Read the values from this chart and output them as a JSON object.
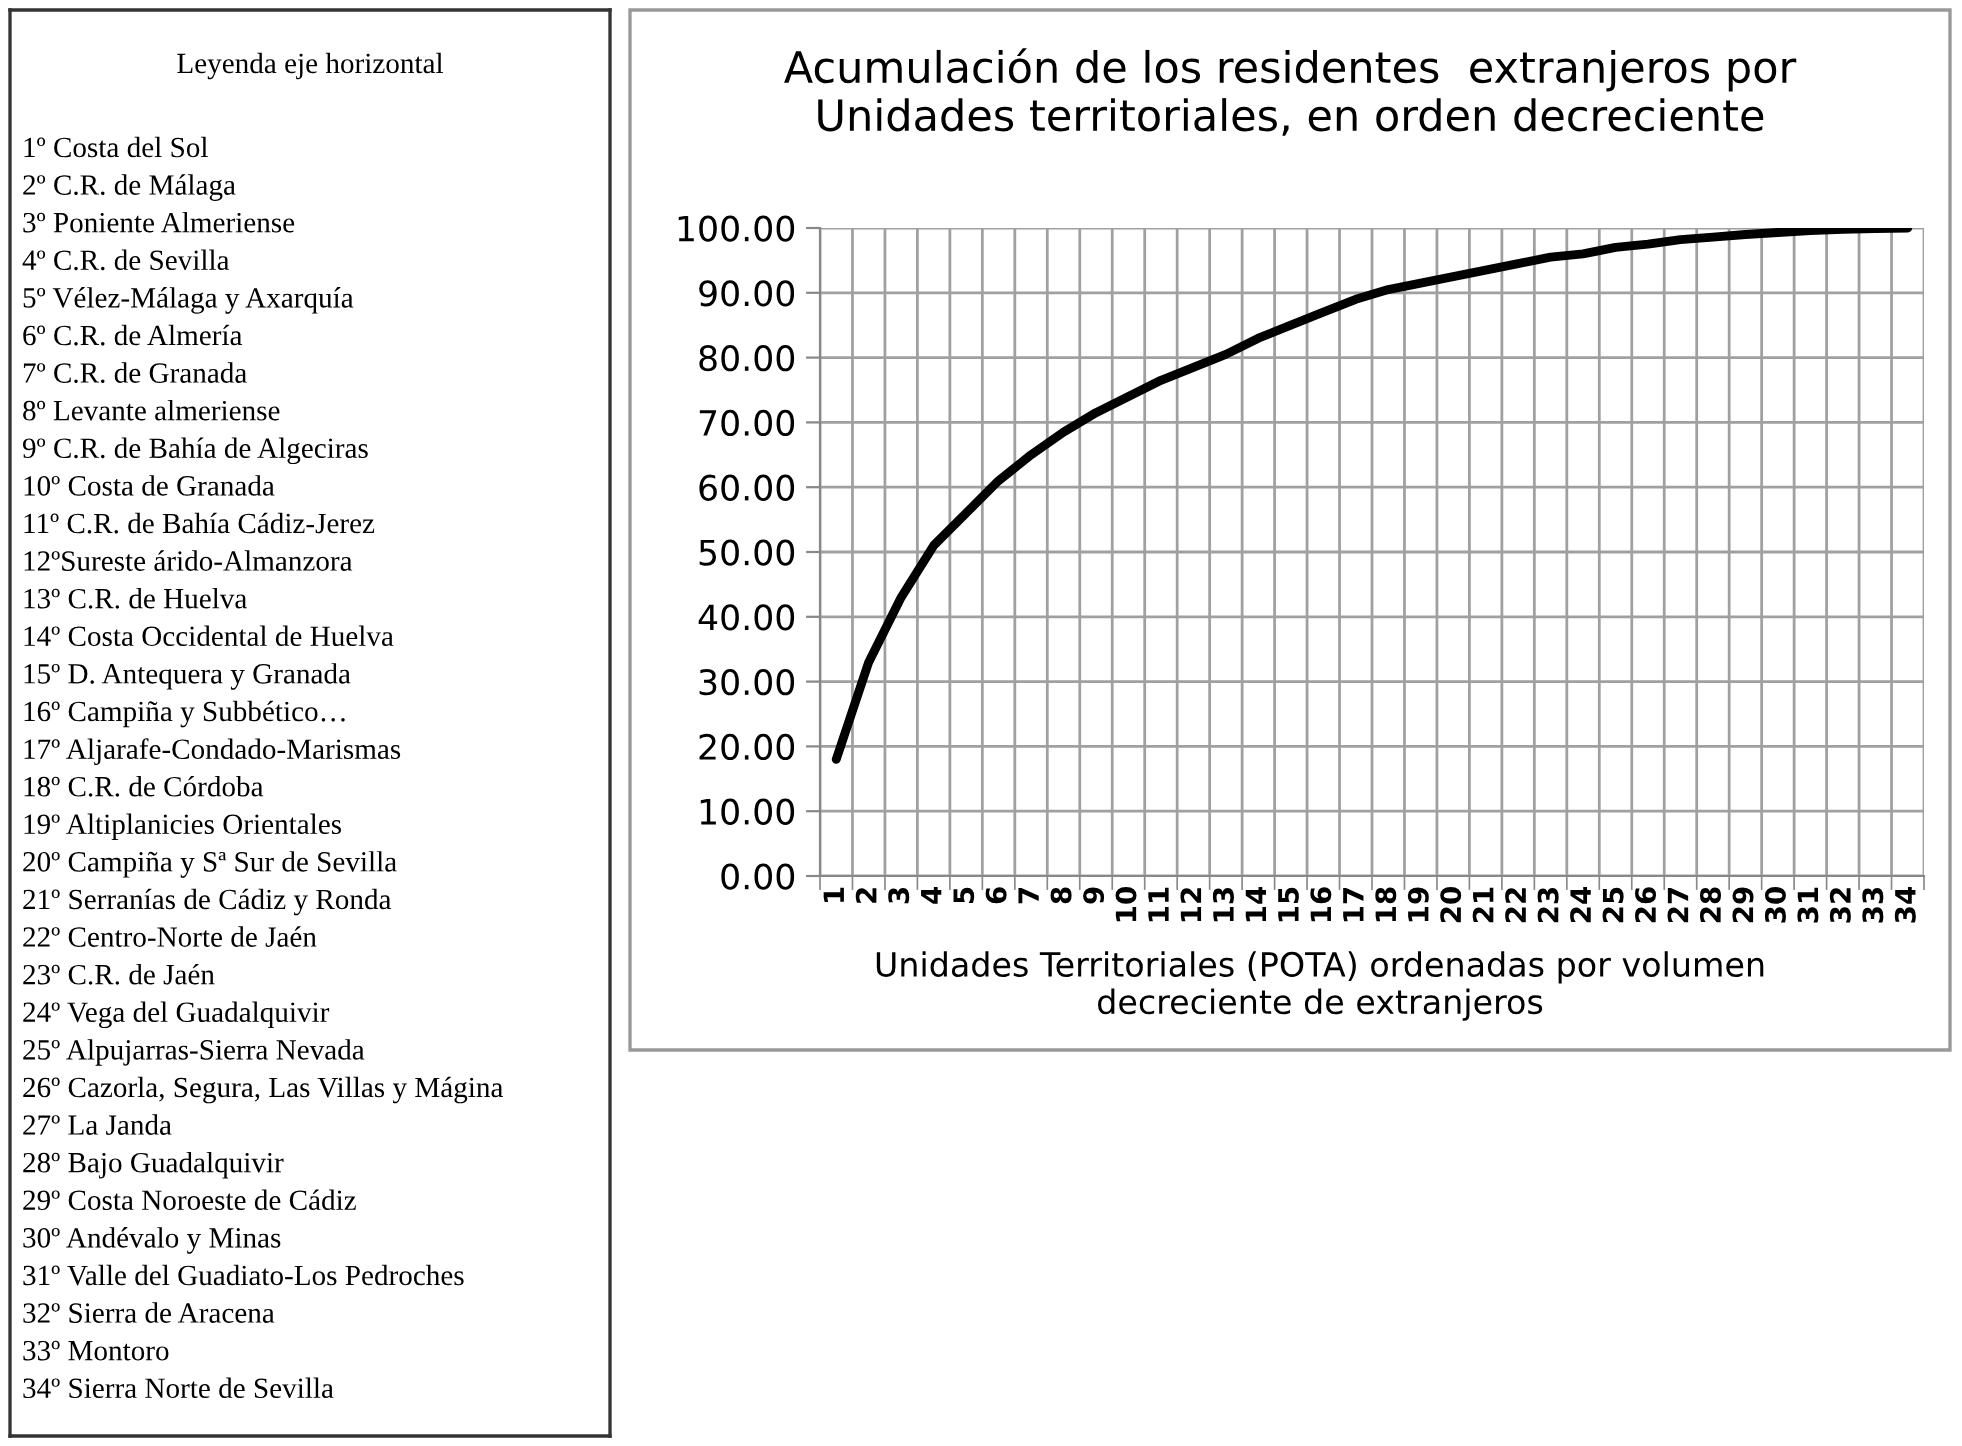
{
  "chart_data": [
    {
      "type": "other",
      "title": "Leyenda eje horizontal",
      "annotations": [
        "1º Costa del Sol",
        "2º C.R. de Málaga",
        "3º Poniente Almeriense",
        "4º C.R. de Sevilla",
        "5º Vélez-Málaga y Axarquía",
        "6º C.R. de Almería",
        "7º C.R. de Granada",
        "8º Levante almeriense",
        "9º C.R. de Bahía de Algeciras",
        "10º Costa de Granada",
        "11º C.R. de Bahía Cádiz-Jerez",
        "12ºSureste árido-Almanzora",
        "13º C.R. de Huelva",
        "14º Costa Occidental de Huelva",
        "15º D. Antequera y Granada",
        "16º Campiña y Subbético…",
        "17º Aljarafe-Condado-Marismas",
        "18º C.R. de Córdoba",
        "19º Altiplanicies Orientales",
        "20º Campiña y Sª Sur de Sevilla",
        "21º Serranías de Cádiz y Ronda",
        "22º Centro-Norte de Jaén",
        "23º C.R. de Jaén",
        "24º Vega del Guadalquivir",
        "25º Alpujarras-Sierra Nevada",
        "26º Cazorla, Segura, Las Villas y Mágina",
        "27º La Janda",
        "28º Bajo Guadalquivir",
        "29º Costa Noroeste de Cádiz",
        "30º Andévalo y Minas",
        "31º Valle del Guadiato-Los Pedroches",
        "32º Sierra de Aracena",
        "33º Montoro",
        "34º Sierra Norte de Sevilla"
      ]
    },
    {
      "type": "line",
      "title": "Acumulación de los residentes  extranjeros por Unidades territoriales, en orden decreciente",
      "xlabel": "Unidades Territoriales (POTA) ordenadas por volumen decreciente de extranjeros",
      "categories": [
        "1",
        "2",
        "3",
        "4",
        "5",
        "6",
        "7",
        "8",
        "9",
        "10",
        "11",
        "12",
        "13",
        "14",
        "15",
        "16",
        "17",
        "18",
        "19",
        "20",
        "21",
        "22",
        "23",
        "24",
        "25",
        "26",
        "27",
        "28",
        "29",
        "30",
        "31",
        "32",
        "33",
        "34"
      ],
      "series": [
        {
          "color": "#000000",
          "values": [
            18,
            33,
            43,
            51,
            56,
            61,
            65,
            68.5,
            71.5,
            74,
            76.5,
            78.5,
            80.5,
            83,
            85,
            87,
            89,
            90.5,
            91.5,
            92.5,
            93.5,
            94.5,
            95.5,
            96,
            97,
            97.5,
            98.2,
            98.6,
            99,
            99.3,
            99.6,
            99.8,
            99.9,
            100
          ]
        }
      ],
      "ylim": [
        0,
        100
      ],
      "yticks": [
        {
          "value": 0,
          "label": "0.00"
        },
        {
          "value": 10,
          "label": "10.00"
        },
        {
          "value": 20,
          "label": "20.00"
        },
        {
          "value": 30,
          "label": "30.00"
        },
        {
          "value": 40,
          "label": "40.00"
        },
        {
          "value": 50,
          "label": "50.00"
        },
        {
          "value": 60,
          "label": "60.00"
        },
        {
          "value": 70,
          "label": "70.00"
        },
        {
          "value": 80,
          "label": "80.00"
        },
        {
          "value": 90,
          "label": "90.00"
        },
        {
          "value": 100,
          "label": "100.00"
        }
      ],
      "grid": true,
      "marker": "none",
      "line_style": "solid"
    }
  ]
}
